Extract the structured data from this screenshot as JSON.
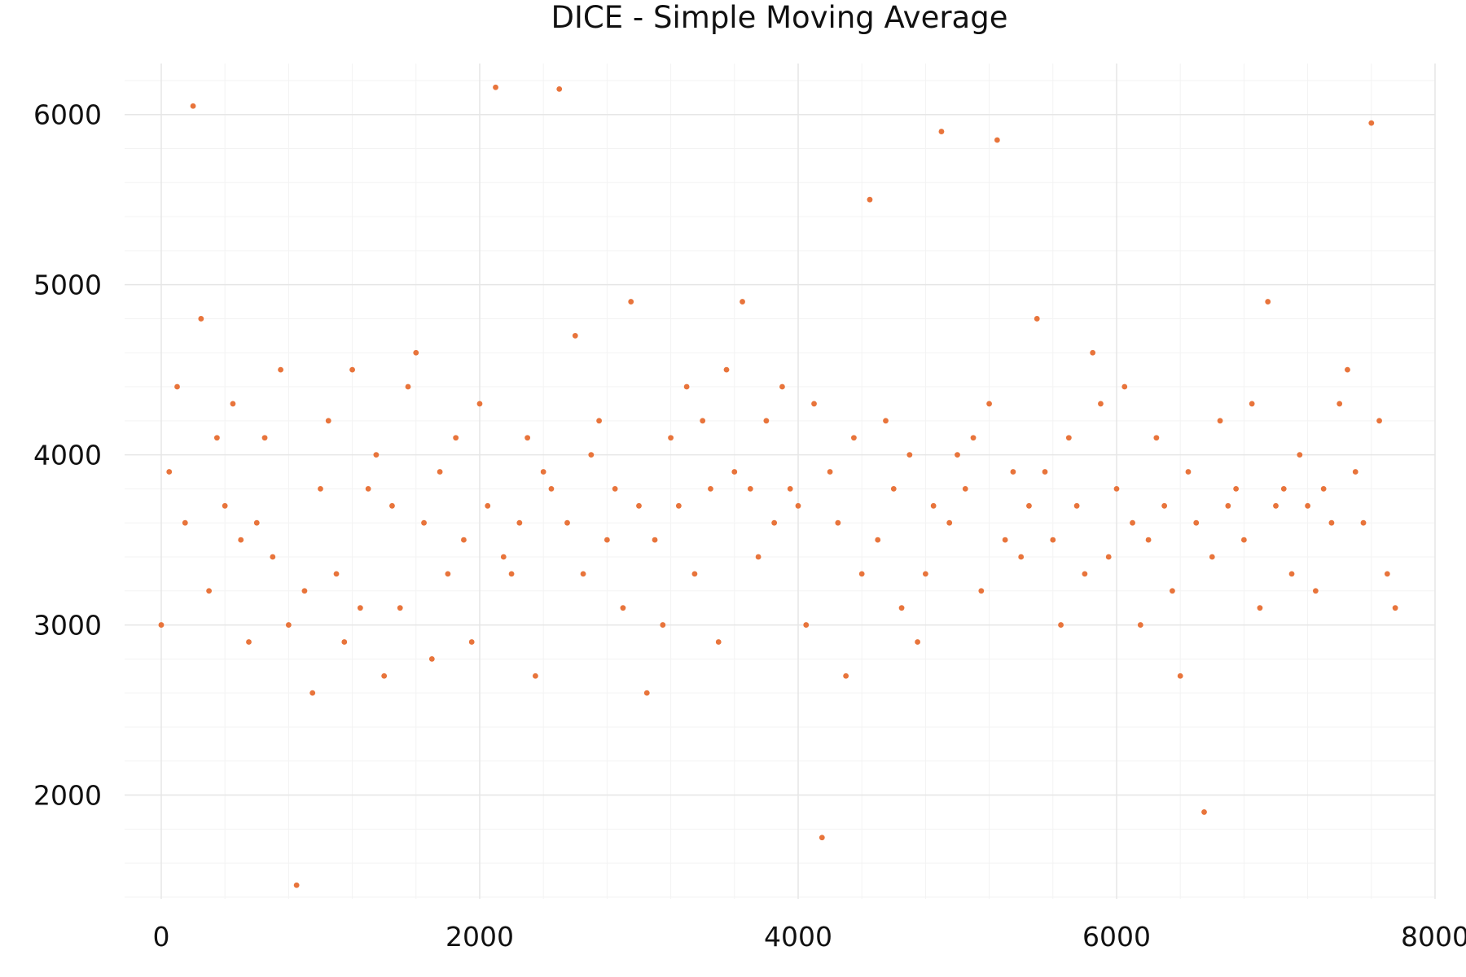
{
  "chart_data": {
    "type": "scatter",
    "title": "DICE - Simple Moving Average",
    "xlabel": "",
    "ylabel": "",
    "xlim": [
      -230,
      8000
    ],
    "ylim": [
      1390,
      6300
    ],
    "xticks": [
      0,
      2000,
      4000,
      6000,
      8000
    ],
    "yticks": [
      2000,
      3000,
      4000,
      5000,
      6000
    ],
    "xtick_labels": [
      "0",
      "2000",
      "4000",
      "6000",
      "8000"
    ],
    "ytick_labels": [
      "2000",
      "3000",
      "4000",
      "5000",
      "6000"
    ],
    "grid": true,
    "legend": "none",
    "color": "#E8743B",
    "x_start": 0,
    "x_step": 50,
    "y": [
      3000,
      3900,
      4400,
      3600,
      6050,
      4800,
      3200,
      4100,
      3700,
      4300,
      3500,
      2900,
      3600,
      4100,
      3400,
      4500,
      3000,
      1470,
      3200,
      2600,
      3800,
      4200,
      3300,
      2900,
      4500,
      3100,
      3800,
      4000,
      2700,
      3700,
      3100,
      4400,
      4600,
      3600,
      2800,
      3900,
      3300,
      4100,
      3500,
      2900,
      4300,
      3700,
      6160,
      3400,
      3300,
      3600,
      4100,
      2700,
      3900,
      3800,
      6150,
      3600,
      4700,
      3300,
      4000,
      4200,
      3500,
      3800,
      3100,
      4900,
      3700,
      2600,
      3500,
      3000,
      4100,
      3700,
      4400,
      3300,
      4200,
      3800,
      2900,
      4500,
      3900,
      4900,
      3800,
      3400,
      4200,
      3600,
      4400,
      3800,
      3700,
      3000,
      4300,
      1750,
      3900,
      3600,
      2700,
      4100,
      3300,
      5500,
      3500,
      4200,
      3800,
      3100,
      4000,
      2900,
      3300,
      3700,
      5900,
      3600,
      4000,
      3800,
      4100,
      3200,
      4300,
      5850,
      3500,
      3900,
      3400,
      3700,
      4800,
      3900,
      3500,
      3000,
      4100,
      3700,
      3300,
      4600,
      4300,
      3400,
      3800,
      4400,
      3600,
      3000,
      3500,
      4100,
      3700,
      3200,
      2700,
      3900,
      3600,
      1900,
      3400,
      4200,
      3700,
      3800,
      3500,
      4300,
      3100,
      4900,
      3700,
      3800,
      3300,
      4000,
      3700,
      3200,
      3800,
      3600,
      4300,
      4500,
      3900,
      3600,
      5950,
      4200,
      3300,
      3100
    ]
  }
}
